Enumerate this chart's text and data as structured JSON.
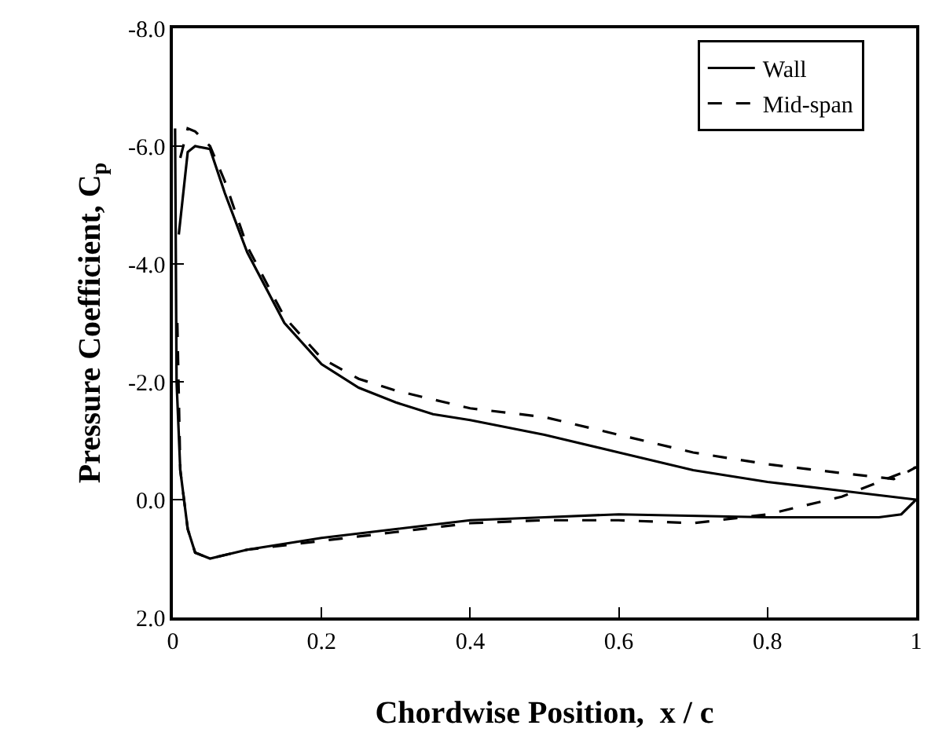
{
  "chart_data": {
    "type": "line",
    "xlabel": "Chordwise Position,  x / c",
    "ylabel": "Pressure Coefficient, C$_{p}$",
    "xlim": [
      0,
      1
    ],
    "ylim": [
      2,
      -8
    ],
    "xticks": [
      0,
      0.2,
      0.4,
      0.6,
      0.8,
      1
    ],
    "yticks": [
      {
        "value": -8,
        "label": "-8.0"
      },
      {
        "value": -6,
        "label": "-6.0"
      },
      {
        "value": -4,
        "label": "-4.0"
      },
      {
        "value": -2,
        "label": "-2.0"
      },
      {
        "value": 0,
        "label": "0.0"
      },
      {
        "value": 2,
        "label": "2.0"
      }
    ],
    "legend": "top right",
    "marker": "none",
    "series": [
      {
        "name": "Wall",
        "color": "#000000",
        "line_style": "solid",
        "x": [
          0.008,
          0.02,
          0.03,
          0.05,
          0.07,
          0.1,
          0.15,
          0.2,
          0.25,
          0.3,
          0.35,
          0.4,
          0.5,
          0.6,
          0.7,
          0.8,
          0.9,
          1.0
        ],
        "values": [
          -4.5,
          -5.9,
          -6.0,
          -5.95,
          -5.2,
          -4.2,
          -3.0,
          -2.3,
          -1.9,
          -1.65,
          -1.45,
          -1.35,
          -1.1,
          -0.8,
          -0.5,
          -0.3,
          -0.15,
          0.0
        ]
      },
      {
        "color": "#000000",
        "line_style": "solid",
        "x": [
          0.003,
          0.005,
          0.01,
          0.02,
          0.03,
          0.05,
          0.1,
          0.2,
          0.3,
          0.4,
          0.5,
          0.6,
          0.8,
          0.95,
          0.98,
          1.0
        ],
        "values": [
          -6.3,
          -2.0,
          -0.5,
          0.5,
          0.9,
          1.0,
          0.85,
          0.65,
          0.5,
          0.35,
          0.3,
          0.25,
          0.3,
          0.3,
          0.25,
          0.0
        ]
      },
      {
        "name": "Mid-span",
        "color": "#000000",
        "line_style": "dashed",
        "x": [
          0.01,
          0.02,
          0.03,
          0.05,
          0.07,
          0.1,
          0.15,
          0.2,
          0.25,
          0.3,
          0.4,
          0.5,
          0.6,
          0.7,
          0.8,
          0.9,
          0.97,
          1.0
        ],
        "values": [
          -5.8,
          -6.3,
          -6.25,
          -6.0,
          -5.4,
          -4.3,
          -3.1,
          -2.4,
          -2.05,
          -1.85,
          -1.55,
          -1.4,
          -1.1,
          -0.8,
          -0.6,
          -0.45,
          -0.35,
          -0.55
        ]
      },
      {
        "color": "#000000",
        "line_style": "dashed",
        "x": [
          0.006,
          0.01,
          0.02,
          0.03,
          0.05,
          0.1,
          0.2,
          0.3,
          0.4,
          0.5,
          0.6,
          0.7,
          0.8,
          0.9,
          1.0
        ],
        "values": [
          -3.0,
          -0.5,
          0.5,
          0.9,
          1.0,
          0.85,
          0.7,
          0.55,
          0.4,
          0.35,
          0.35,
          0.4,
          0.25,
          -0.05,
          -0.55
        ]
      }
    ]
  }
}
